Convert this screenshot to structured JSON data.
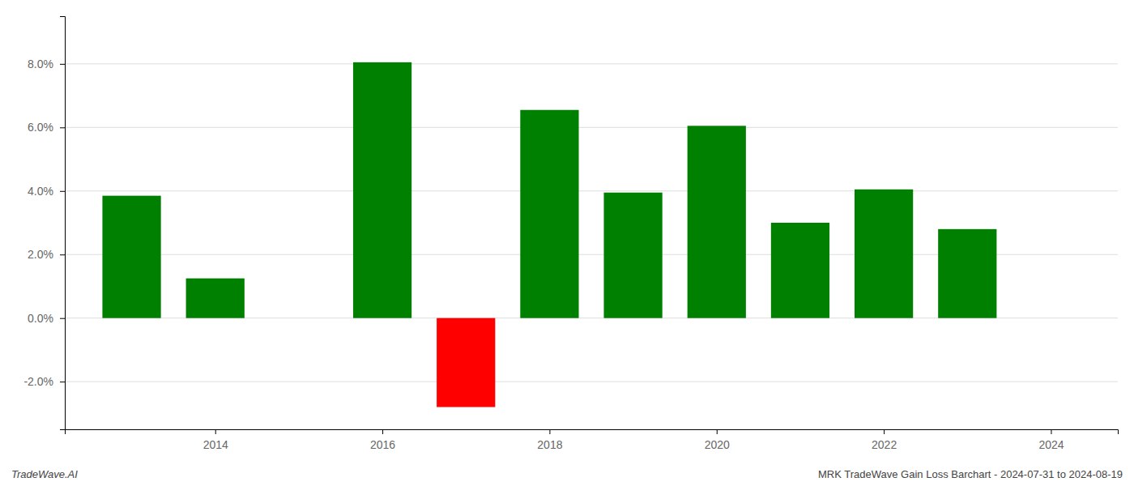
{
  "chart_data": {
    "type": "bar",
    "x": [
      2013,
      2014,
      2016,
      2017,
      2018,
      2019,
      2020,
      2021,
      2022,
      2023
    ],
    "values": [
      3.85,
      1.25,
      8.05,
      -2.8,
      6.55,
      3.95,
      6.05,
      3.0,
      4.05,
      2.8
    ],
    "colors": [
      "#008000",
      "#008000",
      "#008000",
      "#ff0000",
      "#008000",
      "#008000",
      "#008000",
      "#008000",
      "#008000",
      "#008000"
    ],
    "xlim": [
      2012.2,
      2024.8
    ],
    "xticks": [
      2014,
      2016,
      2018,
      2020,
      2022,
      2024
    ],
    "ylim": [
      -3.5,
      9.5
    ],
    "yticks": [
      {
        "value": -2.0,
        "label": "-2.0%"
      },
      {
        "value": 0.0,
        "label": "0.0%"
      },
      {
        "value": 2.0,
        "label": "2.0%"
      },
      {
        "value": 4.0,
        "label": "4.0%"
      },
      {
        "value": 6.0,
        "label": "6.0%"
      },
      {
        "value": 8.0,
        "label": "8.0%"
      }
    ],
    "grid": true,
    "annotations": [
      "TradeWave.AI",
      "MRK TradeWave Gain Loss Barchart - 2024-07-31 to 2024-08-19"
    ]
  }
}
